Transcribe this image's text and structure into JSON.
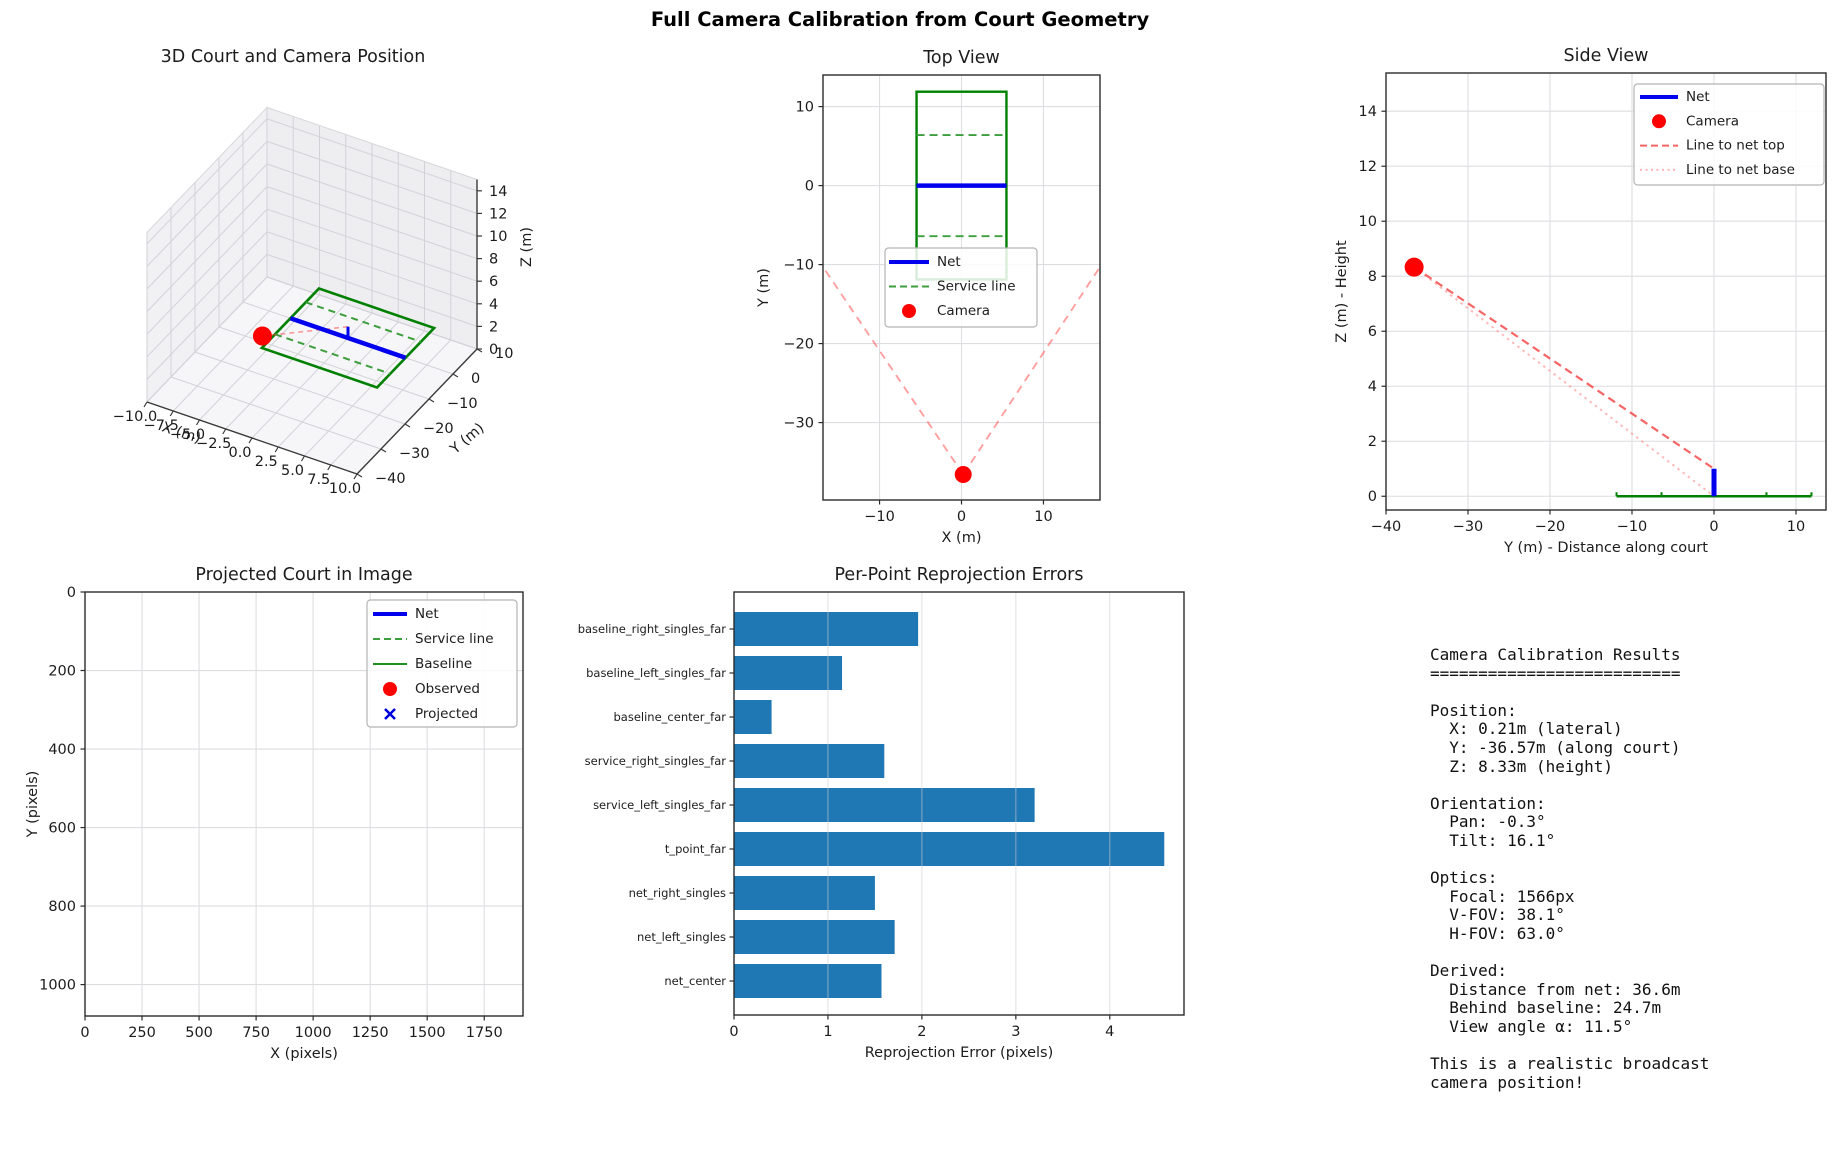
{
  "figure": {
    "title": "Full Camera Calibration from Court Geometry",
    "background": "#ffffff"
  },
  "colors": {
    "net": "#0000ee",
    "court_line": "#008000",
    "service_line": "#3d9e3d",
    "camera": "#ff0000",
    "ray_to_net_top": "rgba(244,62,62,0.8)",
    "ray_to_net_base": "rgba(255,130,130,0.55)",
    "fov_edge": "rgba(255,80,80,0.55)",
    "bar": "#1f77b4",
    "grid": "#dedee2",
    "spine": "#2b2b2b"
  },
  "results_panel": {
    "text": "Camera Calibration Results\n==========================\n\nPosition:\n  X: 0.21m (lateral)\n  Y: -36.57m (along court)\n  Z: 8.33m (height)\n\nOrientation:\n  Pan: -0.3°\n  Tilt: 16.1°\n\nOptics:\n  Focal: 1566px\n  V-FOV: 38.1°\n  H-FOV: 63.0°\n\nDerived:\n  Distance from net: 36.6m\n  Behind baseline: 24.7m\n  View angle α: 11.5°\n\nThis is a realistic broadcast\ncamera position!"
  },
  "chart_data": [
    {
      "id": "court3d",
      "type": "scatter",
      "projection": "3d",
      "title": "3D Court and Camera Position",
      "xlabel": "X (m)",
      "ylabel": "Y (m)",
      "zlabel": "Z (m)",
      "xlim": [
        -10,
        10
      ],
      "ylim": [
        -40,
        10
      ],
      "zlim": [
        0,
        15
      ],
      "xticks": [
        -10,
        -7.5,
        -5,
        -2.5,
        0,
        2.5,
        5,
        7.5,
        10
      ],
      "xtick_labels": [
        "-10.0",
        "-7.5",
        "-5.0",
        "-2.5",
        "0.0",
        "2.5",
        "5.0",
        "7.5",
        "10.0"
      ],
      "yticks": [
        10,
        0,
        -10,
        -20,
        -30,
        -40
      ],
      "zticks": [
        0,
        2,
        4,
        6,
        8,
        10,
        12,
        14
      ],
      "court": {
        "half_width": 5.485,
        "half_length": 11.885,
        "service_line_y": 6.4,
        "net_y": 0,
        "net_top_z": 1
      },
      "camera": {
        "x": 0.21,
        "y": -36.57,
        "z": 8.33
      }
    },
    {
      "id": "top_view",
      "type": "line",
      "title": "Top View",
      "xlabel": "X (m)",
      "ylabel": "Y (m)",
      "xlim": [
        -16.9,
        16.9
      ],
      "ylim": [
        -39.8,
        14.0
      ],
      "xticks": [
        -10,
        0,
        10
      ],
      "yticks": [
        10,
        0,
        -10,
        -20,
        -30
      ],
      "grid": true,
      "court": {
        "half_width": 5.485,
        "half_length": 11.885,
        "service_line_y": 6.4,
        "net_y": 0
      },
      "camera": {
        "x": 0.21,
        "y": -36.57
      },
      "fov_edge_exit_y": -10.3,
      "legend": {
        "position": "center",
        "entries": [
          {
            "label": "Net",
            "marker": "line",
            "color": "#0000ee"
          },
          {
            "label": "Service line",
            "marker": "dashed",
            "color": "#3d9e3d"
          },
          {
            "label": "Camera",
            "marker": "dot",
            "color": "#ff0000"
          }
        ]
      }
    },
    {
      "id": "side_view",
      "type": "line",
      "title": "Side View",
      "xlabel": "Y (m) - Distance along court",
      "ylabel": "Z (m) - Height",
      "xlim": [
        -40,
        13.66
      ],
      "ylim": [
        -0.5,
        15.39
      ],
      "xticks": [
        -40,
        -30,
        -20,
        -10,
        0,
        10
      ],
      "yticks": [
        0,
        2,
        4,
        6,
        8,
        10,
        12,
        14
      ],
      "grid": true,
      "camera": {
        "y": -36.57,
        "z": 8.33
      },
      "net": {
        "y": 0,
        "top_z": 1
      },
      "court_floor_y": [
        -11.885,
        11.885
      ],
      "service_marks_y": [
        -6.4,
        6.4
      ],
      "legend": {
        "position": "upper right",
        "entries": [
          {
            "label": "Net",
            "marker": "line",
            "color": "#0000ee"
          },
          {
            "label": "Camera",
            "marker": "dot",
            "color": "#ff0000"
          },
          {
            "label": "Line to net top",
            "marker": "dashed",
            "color": "rgba(244,62,62,0.8)"
          },
          {
            "label": "Line to net base",
            "marker": "dotted",
            "color": "rgba(255,130,130,0.6)"
          }
        ]
      }
    },
    {
      "id": "projected_court",
      "type": "line",
      "title": "Projected Court in Image",
      "xlabel": "X (pixels)",
      "ylabel": "Y (pixels)",
      "xlim": [
        0,
        1920
      ],
      "ylim": [
        1080,
        0
      ],
      "xticks": [
        0,
        250,
        500,
        750,
        1000,
        1250,
        1500,
        1750
      ],
      "yticks": [
        0,
        200,
        400,
        600,
        800,
        1000
      ],
      "grid": true,
      "legend": {
        "position": "upper right",
        "entries": [
          {
            "label": "Net",
            "marker": "line",
            "color": "#0000ee"
          },
          {
            "label": "Service line",
            "marker": "dashed",
            "color": "#3d9e3d"
          },
          {
            "label": "Baseline",
            "marker": "thinline",
            "color": "#008000"
          },
          {
            "label": "Observed",
            "marker": "dot",
            "color": "#ff0000"
          },
          {
            "label": "Projected",
            "marker": "x",
            "color": "#0000dd"
          }
        ]
      }
    },
    {
      "id": "reprojection_errors",
      "type": "bar",
      "orientation": "horizontal",
      "title": "Per-Point Reprojection Errors",
      "xlabel": "Reprojection Error (pixels)",
      "categories": [
        "baseline_right_singles_far",
        "baseline_left_singles_far",
        "baseline_center_far",
        "service_right_singles_far",
        "service_left_singles_far",
        "t_point_far",
        "net_right_singles",
        "net_left_singles",
        "net_center"
      ],
      "values": [
        1.96,
        1.15,
        0.4,
        1.6,
        3.2,
        4.58,
        1.5,
        1.71,
        1.57
      ],
      "xlim": [
        0,
        4.79
      ],
      "xticks": [
        0,
        1,
        2,
        3,
        4
      ],
      "bar_color": "#1f77b4",
      "grid": true
    }
  ]
}
